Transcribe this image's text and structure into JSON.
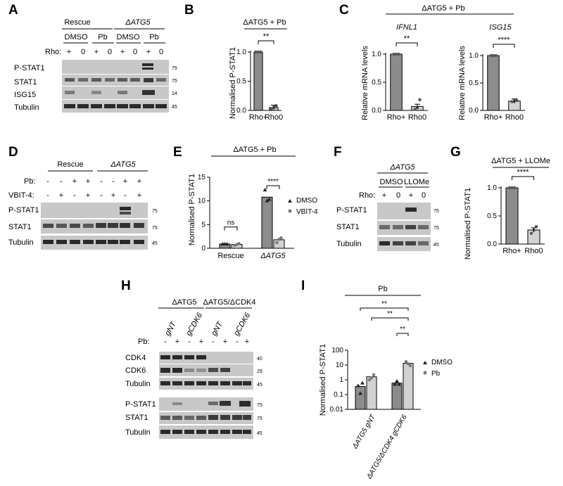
{
  "panels": {
    "A": "A",
    "B": "B",
    "C": "C",
    "D": "D",
    "E": "E",
    "F": "F",
    "G": "G",
    "H": "H",
    "I": "I"
  },
  "blots": {
    "A": {
      "groups": [
        "Rescue",
        "ΔATG5"
      ],
      "treatments": [
        "DMSO",
        "Pb",
        "DMSO",
        "Pb"
      ],
      "row_label": "Rho:",
      "rho": [
        "+",
        "0",
        "+",
        "0",
        "+",
        "0",
        "+",
        "0"
      ],
      "rows": [
        "P-STAT1",
        "STAT1",
        "ISG15",
        "Tubulin"
      ],
      "mw": [
        "75",
        "75",
        "14",
        "45"
      ]
    },
    "D": {
      "groups": [
        "Rescue",
        "ΔATG5"
      ],
      "row1_label": "Pb:",
      "row1": [
        "-",
        "-",
        "+",
        "+",
        "-",
        "-",
        "+",
        "+"
      ],
      "row2_label": "VBIT-4:",
      "row2": [
        "-",
        "+",
        "-",
        "+",
        "-",
        "+",
        "-",
        "+"
      ],
      "rows": [
        "P-STAT1",
        "STAT1",
        "Tubulin"
      ],
      "mw": [
        "75",
        "75",
        "45"
      ]
    },
    "F": {
      "group": "ΔATG5",
      "treatments": [
        "DMSO",
        "LLOMe"
      ],
      "row_label": "Rho:",
      "rho": [
        "+",
        "0",
        "+",
        "0"
      ],
      "rows": [
        "P-STAT1",
        "STAT1",
        "Tubulin"
      ],
      "mw": [
        "75",
        "75",
        "45"
      ]
    },
    "H": {
      "groups": [
        "ΔATG5",
        "ΔATG5/ΔCDK4"
      ],
      "guides": [
        "gNT",
        "gCDK6",
        "gNT",
        "gCDK6"
      ],
      "row_label": "Pb:",
      "pb": [
        "-",
        "+",
        "-",
        "+",
        "-",
        "+",
        "-",
        "+"
      ],
      "rows": [
        "CDK4",
        "CDK6",
        "Tubulin",
        "P-STAT1",
        "STAT1",
        "Tubulin"
      ],
      "mw": [
        "40",
        "29",
        "45",
        "75",
        "75",
        "45"
      ]
    }
  },
  "chart_data": [
    {
      "id": "B",
      "type": "bar",
      "title": "ΔATG5 + Pb",
      "ylabel": "Normalised P-STAT1",
      "categories": [
        "Rho+",
        "Rho0"
      ],
      "values": [
        1.0,
        0.05
      ],
      "points": [
        [
          1.0,
          1.0,
          1.0
        ],
        [
          0.03,
          0.05,
          0.08
        ]
      ],
      "ylim": [
        0,
        1.0
      ],
      "yticks": [
        "0.0",
        "0.5",
        "1.0"
      ],
      "colors": [
        "#8c8c8c",
        "#d2d2d2"
      ],
      "significance": "**"
    },
    {
      "id": "C1",
      "type": "bar",
      "group_title": "ΔATG5 + Pb",
      "title": "IFNL1",
      "ylabel": "Relative mRNA levels",
      "categories": [
        "Rho+",
        "Rho0"
      ],
      "values": [
        1.0,
        0.07
      ],
      "points": [
        [
          1.0,
          1.0,
          1.0
        ],
        [
          0.02,
          0.05,
          0.19
        ]
      ],
      "ylim": [
        0,
        1.0
      ],
      "yticks": [
        "0.0",
        "0.5",
        "1.0"
      ],
      "colors": [
        "#8c8c8c",
        "#d2d2d2"
      ],
      "significance": "**"
    },
    {
      "id": "C2",
      "type": "bar",
      "title": "ISG15",
      "ylabel": "Relative mRNA levels",
      "categories": [
        "Rho+",
        "Rho0"
      ],
      "values": [
        1.0,
        0.17
      ],
      "points": [
        [
          1.0,
          1.0,
          1.0
        ],
        [
          0.16,
          0.17,
          0.18
        ]
      ],
      "ylim": [
        0,
        1.0
      ],
      "yticks": [
        "0.0",
        "0.5",
        "1.0"
      ],
      "colors": [
        "#8c8c8c",
        "#d2d2d2"
      ],
      "significance": "****"
    },
    {
      "id": "E",
      "type": "bar",
      "title": "ΔATG5 + Pb",
      "ylabel": "Normalised P-STAT1",
      "categories": [
        "Rescue",
        "ΔATG5"
      ],
      "series": [
        {
          "name": "DMSO",
          "values": [
            0.9,
            10.8
          ],
          "points": [
            [
              0.9,
              0.9,
              0.9
            ],
            [
              12.3,
              10.0,
              10.3
            ]
          ]
        },
        {
          "name": "VBIT-4",
          "values": [
            0.8,
            1.8
          ],
          "points": [
            [
              0.6,
              0.8,
              1.0
            ],
            [
              1.2,
              1.9,
              2.2
            ]
          ]
        }
      ],
      "ylim": [
        0,
        15
      ],
      "yticks": [
        "0",
        "5",
        "10",
        "15"
      ],
      "colors": [
        "#8c8c8c",
        "#d2d2d2"
      ],
      "comparisons": [
        "ns",
        "****"
      ]
    },
    {
      "id": "G",
      "type": "bar",
      "title": "ΔATG5 + LLOMe",
      "ylabel": "Normalised P-STAT1",
      "categories": [
        "Rho+",
        "Rho0"
      ],
      "values": [
        1.0,
        0.25
      ],
      "points": [
        [
          1.0,
          1.0,
          1.0
        ],
        [
          0.19,
          0.25,
          0.31
        ]
      ],
      "ylim": [
        0,
        1.0
      ],
      "yticks": [
        "0.0",
        "0.5",
        "1.0"
      ],
      "colors": [
        "#8c8c8c",
        "#d2d2d2"
      ],
      "significance": "****"
    },
    {
      "id": "I",
      "type": "bar",
      "title": "Pb",
      "ylabel": "Normalised P-STAT1",
      "scale": "log",
      "categories": [
        "ΔATG5 gNT",
        "ΔATG5/ΔCDK4 gCDK6"
      ],
      "series": [
        {
          "name": "DMSO",
          "values": [
            0.35,
            0.6
          ],
          "points": [
            [
              0.4,
              0.12,
              0.6
            ],
            [
              0.5,
              0.8,
              0.5
            ]
          ]
        },
        {
          "name": "Pb",
          "values": [
            1.6,
            13.0
          ],
          "points": [
            [
              1.0,
              1.4,
              2.2
            ],
            [
              17.0,
              12.0,
              9.0
            ]
          ]
        }
      ],
      "ylim": [
        0.01,
        100
      ],
      "yticks": [
        "0.01",
        "0.1",
        "1",
        "10",
        "100"
      ],
      "colors": [
        "#8c8c8c",
        "#d2d2d2"
      ],
      "comparisons": [
        "**",
        "**",
        "**"
      ]
    }
  ]
}
